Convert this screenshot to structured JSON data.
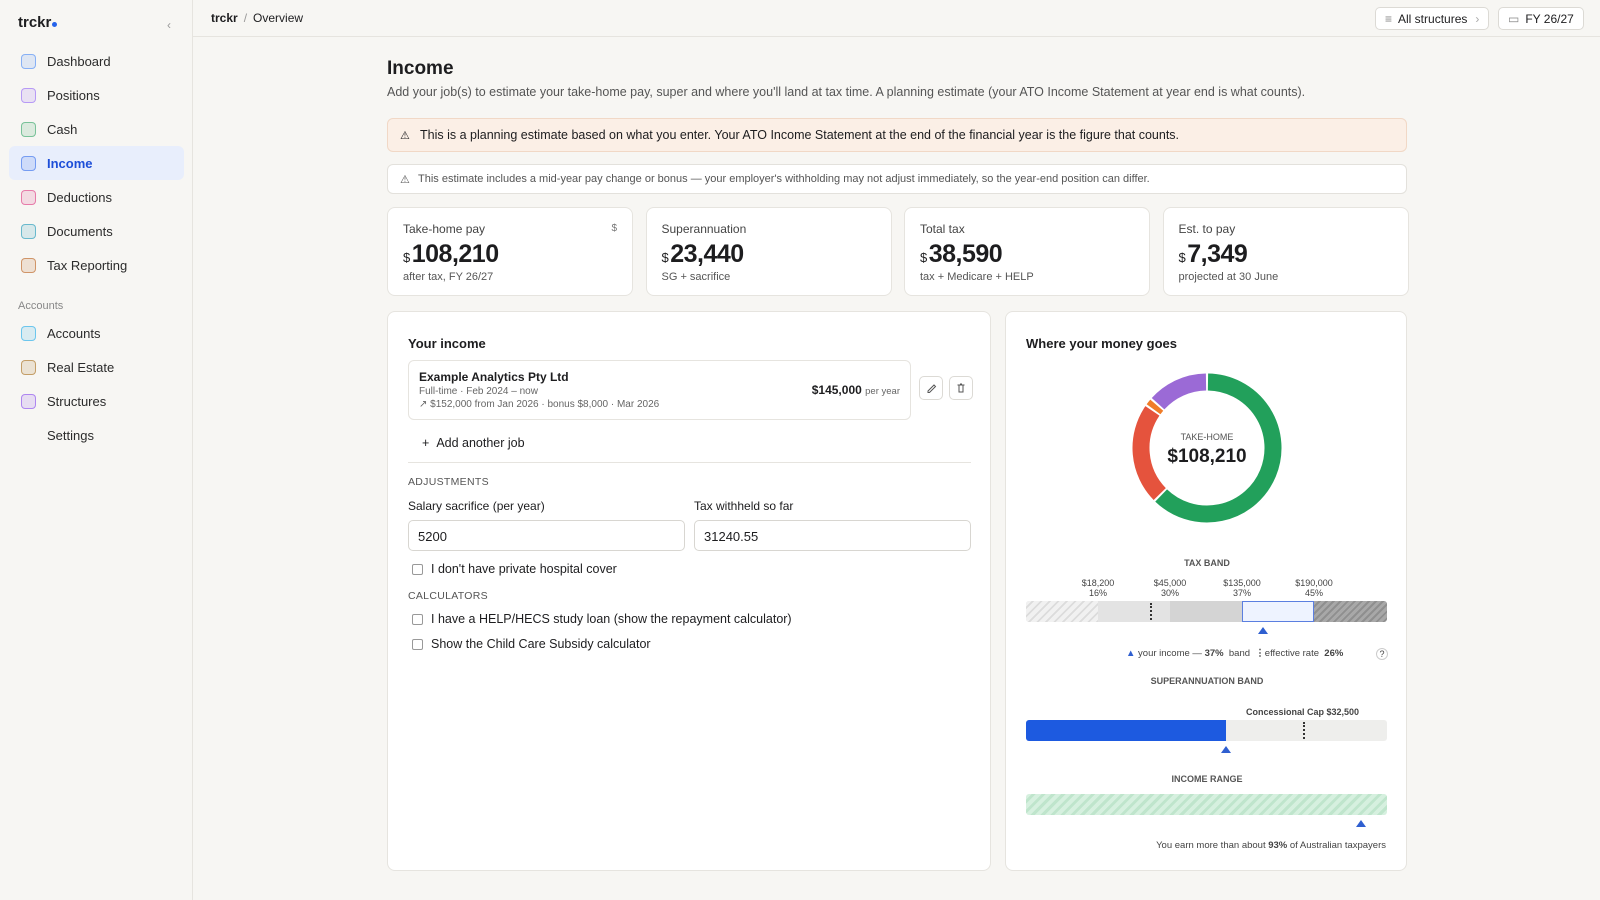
{
  "sidebar": {
    "brand": "trckr",
    "nav": [
      "Dashboard",
      "Positions",
      "Cash",
      "Income",
      "Deductions",
      "Documents",
      "Tax Reporting"
    ],
    "section": "Accounts",
    "nav2": [
      "Accounts",
      "Real Estate",
      "Structures",
      "Settings"
    ]
  },
  "topbar": {
    "crumb": "trckr",
    "sep": "/",
    "page": "Overview",
    "structures": "All structures",
    "fy": "FY 26/27"
  },
  "header": {
    "title": "Income",
    "subtitle": "Add your job(s) to estimate your take-home pay, super and where you'll land at tax time. A planning estimate (your ATO Income Statement at year end is what counts)."
  },
  "alerts": [
    "This is a planning estimate based on what you enter. Your ATO Income Statement at the end of the financial year is the figure that counts.",
    "This estimate includes a mid-year pay change or bonus — your employer's withholding may not adjust immediately, so the year-end position can differ."
  ],
  "stats": [
    {
      "label": "Take-home pay",
      "currency": "$",
      "value": "108,210",
      "sub": "after tax, FY 26/27",
      "icon": "$"
    },
    {
      "label": "Superannuation",
      "currency": "$",
      "value": "23,440",
      "sub": "SG + sacrifice"
    },
    {
      "label": "Total tax",
      "currency": "$",
      "value": "38,590",
      "sub": "tax + Medicare + HELP"
    },
    {
      "label": "Est. to pay",
      "currency": "$",
      "value": "7,349",
      "sub": "projected at 30 June"
    }
  ],
  "income": {
    "title": "Your income",
    "job": {
      "name": "Example Analytics Pty Ltd",
      "meta": "Full-time · Feb 2024 – now",
      "change": "↗ $152,000 from Jan 2026 · bonus $8,000 · Mar 2026",
      "amount": "$145,000",
      "period": "per year"
    },
    "add": "Add another job",
    "adjustments": "ADJUSTMENTS",
    "fields": [
      {
        "label": "Salary sacrifice (per year)",
        "value": "5200"
      },
      {
        "label": "Tax withheld so far",
        "value": "31240.55"
      }
    ],
    "hospital": "I don't have private hospital cover",
    "calculators": "CALCULATORS",
    "checks": [
      "I have a HELP/HECS study loan (show the repayment calculator)",
      "Show the Child Care Subsidy calculator"
    ]
  },
  "money": {
    "title": "Where your money goes",
    "donut_label": "TAKE-HOME",
    "donut_value": "$108,210",
    "segments": [
      {
        "value": 108210,
        "color": "#22a05b"
      },
      {
        "value": 38590,
        "color": "#e5533d"
      },
      {
        "value": 3000,
        "color": "#f07c28"
      },
      {
        "value": 23440,
        "color": "#9b6ad6"
      }
    ],
    "tax_band": "TAX BAND",
    "thresholds": [
      {
        "amount": "$18,200",
        "rate": "16%"
      },
      {
        "amount": "$45,000",
        "rate": "30%"
      },
      {
        "amount": "$135,000",
        "rate": "37%"
      },
      {
        "amount": "$190,000",
        "rate": "45%"
      }
    ],
    "legend_income": "your income —",
    "legend_band_rate": "37%",
    "legend_band": "band",
    "legend_eff": "effective rate",
    "legend_eff_rate": "26%",
    "help": "?",
    "super_band": "SUPERANNUATION BAND",
    "cap": "Concessional Cap $32,500",
    "income_range": "INCOME RANGE",
    "percentile_pre": "You earn more than about",
    "percentile": "93%",
    "percentile_post": "of Australian taxpayers"
  }
}
